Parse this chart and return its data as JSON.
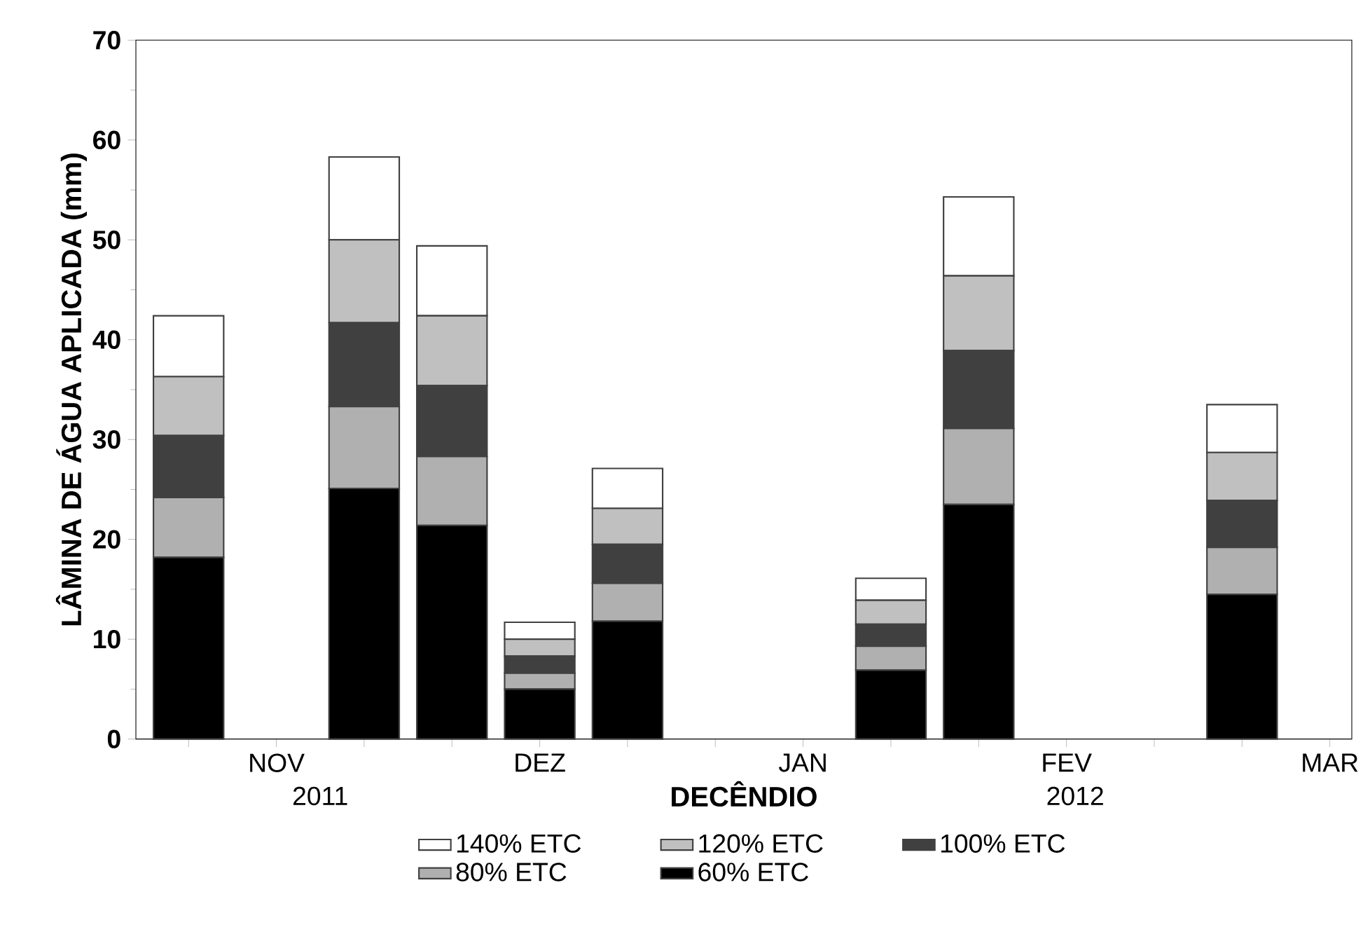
{
  "chart_data": {
    "type": "bar",
    "stacked": true,
    "xlabel": "DECÊNDIO",
    "ylabel": "LÂMINA DE ÁGUA APLICADA (mm)",
    "categories": [
      null,
      "NOV",
      null,
      null,
      "DEZ",
      null,
      null,
      "JAN",
      null,
      null,
      "FEV",
      null,
      null,
      "MAR"
    ],
    "series": [
      {
        "name": "60% ETC",
        "color": "#000000",
        "values": [
          18.2,
          null,
          25.1,
          21.4,
          5.0,
          11.8,
          null,
          null,
          6.9,
          23.5,
          null,
          null,
          14.5,
          null
        ]
      },
      {
        "name": "80% ETC",
        "color": "#b0b0b0",
        "values": [
          6.0,
          null,
          8.2,
          6.9,
          1.6,
          3.8,
          null,
          null,
          2.4,
          7.6,
          null,
          null,
          4.7,
          null
        ]
      },
      {
        "name": "100% ETC",
        "color": "#404040",
        "values": [
          6.2,
          null,
          8.4,
          7.1,
          1.7,
          3.9,
          null,
          null,
          2.2,
          7.8,
          null,
          null,
          4.7,
          null
        ]
      },
      {
        "name": "120% ETC",
        "color": "#c0c0c0",
        "values": [
          5.9,
          null,
          8.3,
          7.0,
          1.7,
          3.6,
          null,
          null,
          2.4,
          7.5,
          null,
          null,
          4.8,
          null
        ]
      },
      {
        "name": "140% ETC",
        "color": "#ffffff",
        "values": [
          6.1,
          null,
          8.3,
          7.0,
          1.7,
          4.0,
          null,
          null,
          2.2,
          7.9,
          null,
          null,
          4.8,
          null
        ]
      }
    ],
    "ylim": [
      0,
      70
    ],
    "yticks": [
      0,
      10,
      20,
      30,
      40,
      50,
      60,
      70
    ],
    "legend": "bottom",
    "grid": false,
    "annotations": [
      "2011",
      "2012"
    ]
  }
}
